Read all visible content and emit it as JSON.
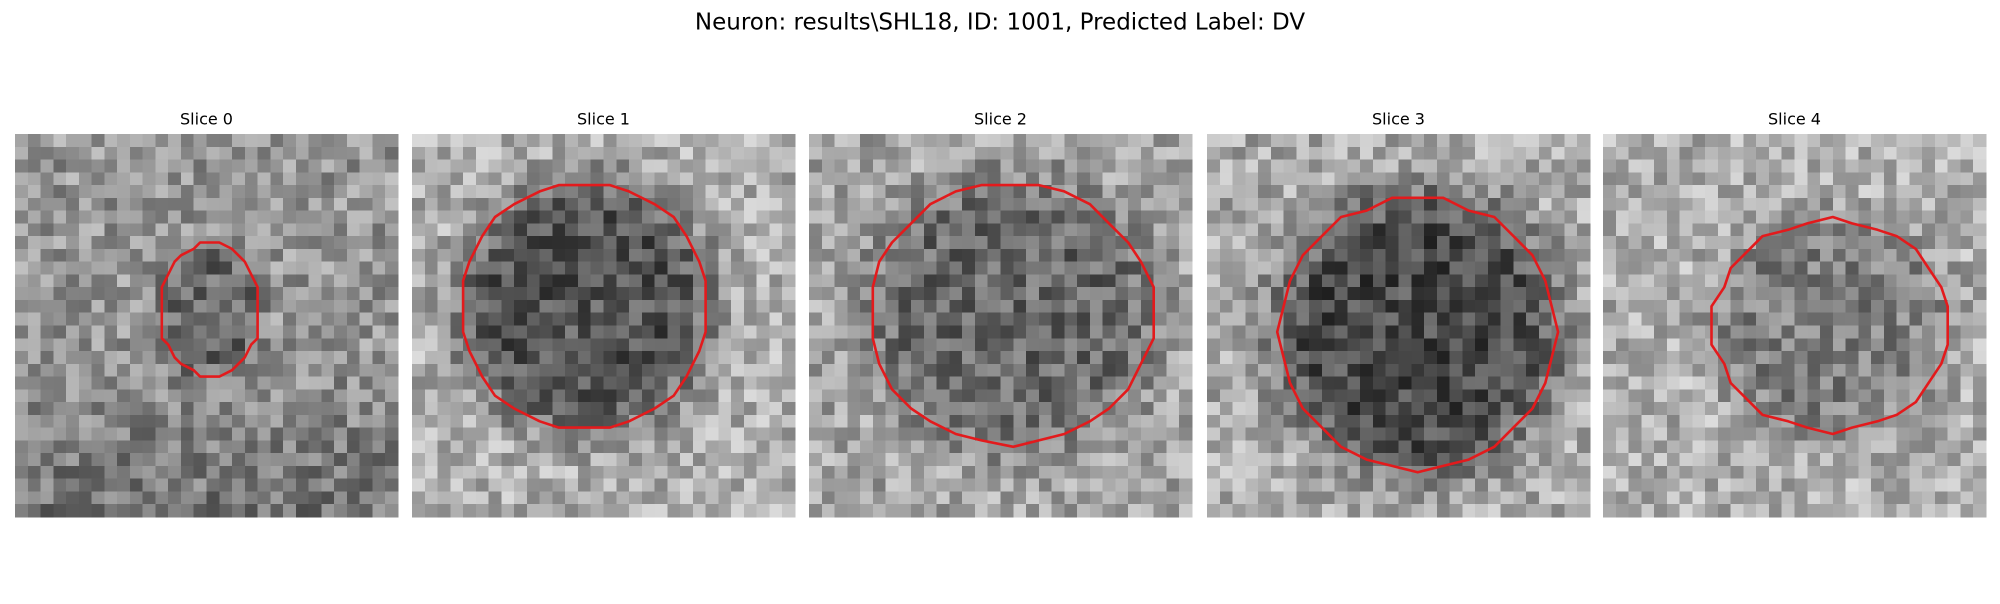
{
  "title": "Neuron: results\\SHL18, ID: 1001, Predicted Label: DV",
  "panels": [
    {
      "title": "Slice 0"
    },
    {
      "title": "Slice 1"
    },
    {
      "title": "Slice 2"
    },
    {
      "title": "Slice 3"
    },
    {
      "title": "Slice 4"
    }
  ]
}
